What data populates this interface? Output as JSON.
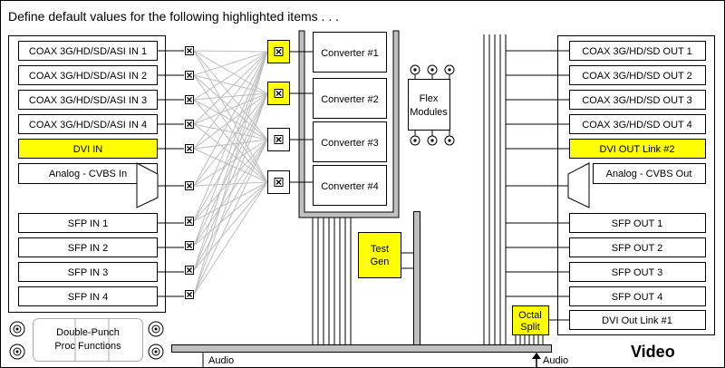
{
  "header": {
    "instruction": "Define default values for the following highlighted items . . ."
  },
  "inputs": [
    {
      "label": "COAX 3G/HD/SD/ASI IN 1",
      "highlighted": false
    },
    {
      "label": "COAX 3G/HD/SD/ASI IN 2",
      "highlighted": false
    },
    {
      "label": "COAX 3G/HD/SD/ASI IN 3",
      "highlighted": false
    },
    {
      "label": "COAX 3G/HD/SD/ASI IN 4",
      "highlighted": false
    },
    {
      "label": "DVI IN",
      "highlighted": true
    },
    {
      "label": "Analog - CVBS In",
      "highlighted": false
    },
    {
      "label": "SFP IN 1",
      "highlighted": false
    },
    {
      "label": "SFP IN 2",
      "highlighted": false
    },
    {
      "label": "SFP IN 3",
      "highlighted": false
    },
    {
      "label": "SFP IN 4",
      "highlighted": false
    }
  ],
  "outputs": [
    {
      "label": "COAX 3G/HD/SD OUT 1",
      "highlighted": false
    },
    {
      "label": "COAX 3G/HD/SD OUT 2",
      "highlighted": false
    },
    {
      "label": "COAX 3G/HD/SD OUT 3",
      "highlighted": false
    },
    {
      "label": "COAX 3G/HD/SD OUT 4",
      "highlighted": false
    },
    {
      "label": "DVI OUT Link #2",
      "highlighted": true
    },
    {
      "label": "Analog - CVBS Out",
      "highlighted": false
    },
    {
      "label": "SFP OUT 1",
      "highlighted": false
    },
    {
      "label": "SFP OUT 2",
      "highlighted": false
    },
    {
      "label": "SFP OUT 3",
      "highlighted": false
    },
    {
      "label": "SFP OUT 4",
      "highlighted": false
    },
    {
      "label": "DVI Out Link #1",
      "highlighted": false
    }
  ],
  "converters": [
    {
      "label": "Converter #1",
      "highlighted": true
    },
    {
      "label": "Converter #2",
      "highlighted": true
    },
    {
      "label": "Converter #3",
      "highlighted": false
    },
    {
      "label": "Converter #4",
      "highlighted": false
    }
  ],
  "flex_modules": {
    "line1": "Flex",
    "line2": "Modules"
  },
  "test_gen": {
    "line1": "Test",
    "line2": "Gen",
    "highlighted": true
  },
  "octal_split": {
    "line1": "Octal",
    "line2": "Split",
    "highlighted": true
  },
  "double_punch": {
    "line1": "Double-Punch",
    "line2": "Proc Functions"
  },
  "audio_labels": [
    "Audio",
    "Audio"
  ],
  "video_label": "Video",
  "colors": {
    "highlight": "#ffff00",
    "bus_fill": "#c0c0c0",
    "crosspoint_lines": "#bdbdbd",
    "line": "#000000",
    "background": "#ffffff"
  },
  "icons": {
    "crosspoint": "crosspoint-x-icon",
    "connector": "bnc-connector-icon",
    "analog": "trapezoid-icon",
    "audio_arrow": "arrow-up-icon"
  }
}
